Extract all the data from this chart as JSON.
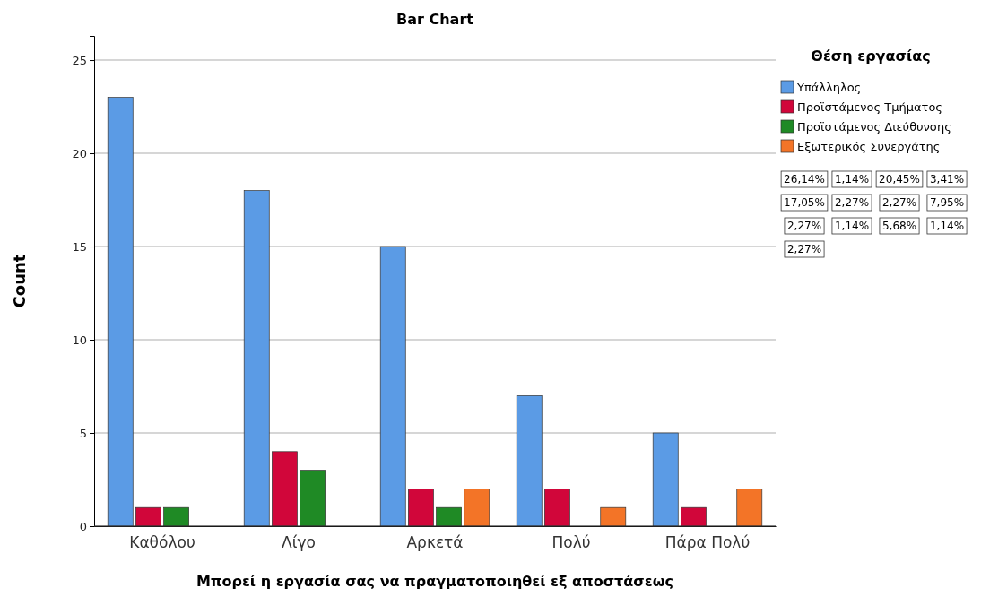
{
  "chart_data": {
    "type": "bar",
    "title": "Bar Chart",
    "xlabel": "Μπορεί η εργασία σας να πραγματοποιηθεί εξ αποστάσεως",
    "ylabel": "Count",
    "legend_title": "Θέση εργασίας",
    "legend": "right",
    "grid": "y",
    "categories": [
      "Καθόλου",
      "Λίγο",
      "Αρκετά",
      "Πολύ",
      "Πάρα Πολύ"
    ],
    "ylim": [
      0,
      26.3
    ],
    "yticks": [
      0,
      5,
      10,
      15,
      20,
      25
    ],
    "series": [
      {
        "name": "Υπάλληλος",
        "color": "#5b9be5",
        "values": [
          23,
          18,
          15,
          7,
          5
        ]
      },
      {
        "name": "Προϊστάμενος Τμήματος",
        "color": "#d1063a",
        "values": [
          1,
          4,
          2,
          2,
          1
        ]
      },
      {
        "name": "Προϊστάμενος Διεύθυνσης",
        "color": "#1f8a25",
        "values": [
          1,
          3,
          1,
          0,
          0
        ]
      },
      {
        "name": "Εξωτερικός Συνεργάτης",
        "color": "#f37427",
        "values": [
          0,
          0,
          2,
          1,
          2
        ]
      }
    ],
    "annotations": [
      "26,14%",
      "1,14%",
      "20,45%",
      "3,41%",
      "17,05%",
      "2,27%",
      "2,27%",
      "7,95%",
      "2,27%",
      "1,14%",
      "5,68%",
      "1,14%",
      "2,27%"
    ]
  }
}
